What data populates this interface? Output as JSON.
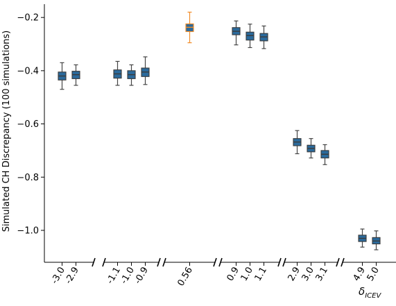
{
  "chart_data": {
    "type": "box",
    "ylabel": "Simulated CH Discrepancy (100 simulations)",
    "xlabel_main": "δ",
    "xlabel_sub": "ICEV",
    "ylim": [
      -1.12,
      -0.15
    ],
    "yticks": [
      -0.2,
      -0.4,
      -0.6,
      -0.8,
      -1.0
    ],
    "ytick_labels": [
      "−0.2",
      "−0.4",
      "−0.6",
      "−0.8",
      "−1.0"
    ],
    "colors": {
      "box": "#2b6a9c",
      "highlight": "#f28c28",
      "median": "#3a3a3a",
      "whisker": "#444444",
      "axis": "#000000"
    },
    "groups": [
      {
        "boxes": [
          {
            "label": "-3.0",
            "min": -0.47,
            "q1": -0.435,
            "median": -0.42,
            "q3": -0.405,
            "max": -0.37
          },
          {
            "label": "-2.9",
            "min": -0.455,
            "q1": -0.43,
            "median": -0.415,
            "q3": -0.402,
            "max": -0.378
          }
        ]
      },
      {
        "boxes": [
          {
            "label": "-1.1",
            "min": -0.455,
            "q1": -0.428,
            "median": -0.412,
            "q3": -0.397,
            "max": -0.365
          },
          {
            "label": "-1.0",
            "min": -0.455,
            "q1": -0.43,
            "median": -0.415,
            "q3": -0.4,
            "max": -0.378
          },
          {
            "label": "-0.9",
            "min": -0.452,
            "q1": -0.422,
            "median": -0.405,
            "q3": -0.39,
            "max": -0.348
          }
        ]
      },
      {
        "boxes": [
          {
            "label": "0.56",
            "min": -0.295,
            "q1": -0.253,
            "median": -0.237,
            "q3": -0.224,
            "max": -0.18,
            "highlight": true
          }
        ]
      },
      {
        "boxes": [
          {
            "label": "0.9",
            "min": -0.303,
            "q1": -0.265,
            "median": -0.252,
            "q3": -0.238,
            "max": -0.213
          },
          {
            "label": "1.0",
            "min": -0.313,
            "q1": -0.285,
            "median": -0.268,
            "q3": -0.255,
            "max": -0.225
          },
          {
            "label": "1.1",
            "min": -0.317,
            "q1": -0.288,
            "median": -0.273,
            "q3": -0.26,
            "max": -0.232
          }
        ]
      },
      {
        "boxes": [
          {
            "label": "2.9",
            "min": -0.712,
            "q1": -0.682,
            "median": -0.668,
            "q3": -0.655,
            "max": -0.625
          },
          {
            "label": "3.0",
            "min": -0.728,
            "q1": -0.705,
            "median": -0.692,
            "q3": -0.68,
            "max": -0.655
          },
          {
            "label": "3.1",
            "min": -0.753,
            "q1": -0.728,
            "median": -0.714,
            "q3": -0.7,
            "max": -0.678
          }
        ]
      },
      {
        "boxes": [
          {
            "label": "4.9",
            "min": -1.063,
            "q1": -1.042,
            "median": -1.03,
            "q3": -1.018,
            "max": -0.995
          },
          {
            "label": "5.0",
            "min": -1.073,
            "q1": -1.051,
            "median": -1.04,
            "q3": -1.027,
            "max": -1.002
          }
        ]
      }
    ]
  }
}
